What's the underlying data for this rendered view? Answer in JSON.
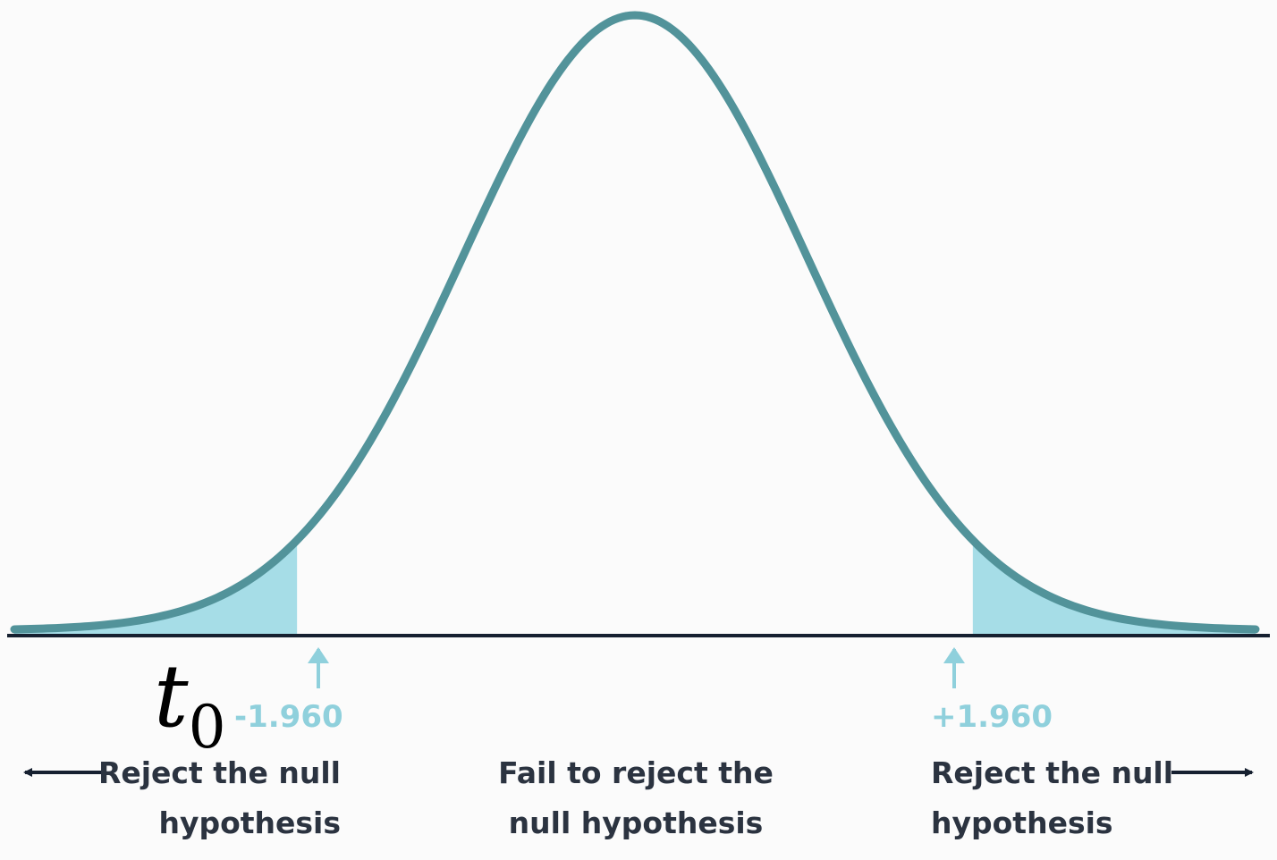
{
  "chart_data": {
    "type": "area",
    "title": "",
    "xlabel": "",
    "ylabel": "",
    "distribution": "standard normal",
    "xlim": [
      -3.6,
      3.6
    ],
    "ylim": [
      0,
      0.42
    ],
    "critical_values": [
      -1.96,
      1.96
    ],
    "critical_labels": [
      "-1.960",
      "+1.960"
    ],
    "shaded_tails": true,
    "regions": [
      {
        "line1": "Reject the null",
        "line2": "hypothesis"
      },
      {
        "line1": "Fail to reject the",
        "line2": "null hypothesis"
      },
      {
        "line1": "Reject the null",
        "line2": "hypothesis"
      }
    ],
    "annotation": {
      "var": "t",
      "sub": "0"
    },
    "colors": {
      "curve": "#52939a",
      "tail_fill": "#a6dde7",
      "axis": "#162030",
      "critical_text": "#8fd0dc",
      "region_text": "#2b3340"
    }
  }
}
